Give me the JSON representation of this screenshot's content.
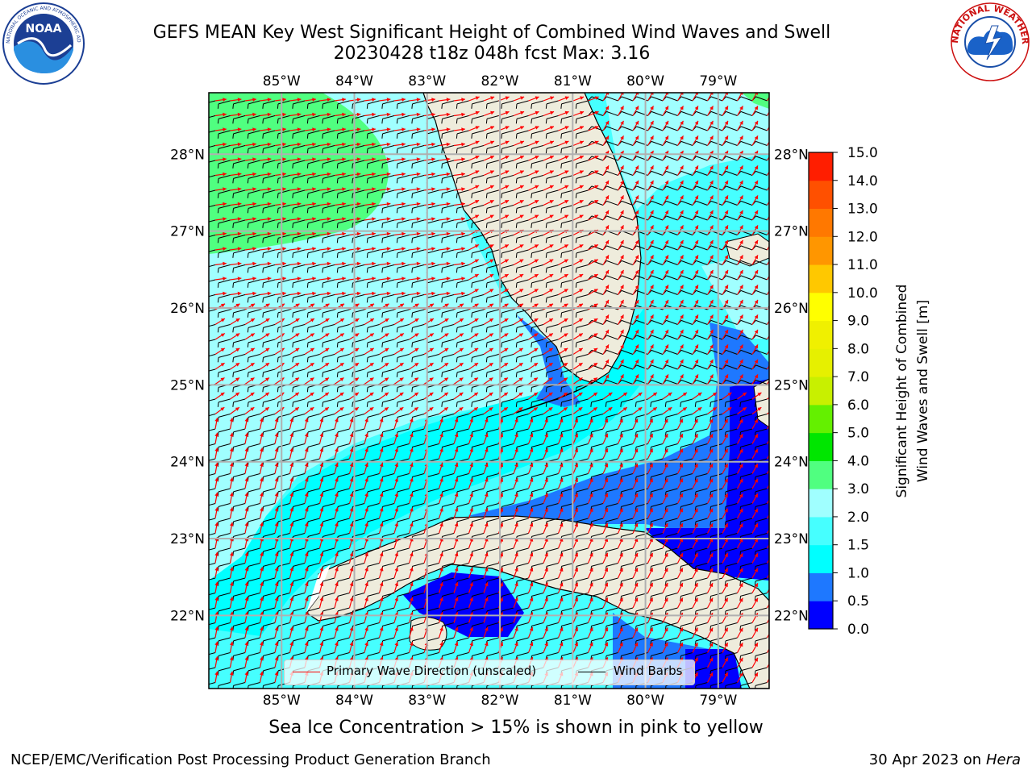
{
  "header": {
    "title_line1": "GEFS MEAN Key West Significant Height of Combined Wind Waves and Swell",
    "title_line2": "20230428 t18z 048h fcst   Max: 3.16"
  },
  "logos": {
    "noaa_text": "NOAA",
    "noaa_ring_text": "NATIONAL OCEANIC AND ATMOSPHERIC ADMINISTRATION · U.S. DEPARTMENT OF COMMERCE",
    "nws_ring_text": "NATIONAL WEATHER SERVICE"
  },
  "map": {
    "lon_ticks": [
      "85°W",
      "84°W",
      "83°W",
      "82°W",
      "81°W",
      "80°W",
      "79°W"
    ],
    "lat_ticks": [
      "28°N",
      "27°N",
      "26°N",
      "25°N",
      "24°N",
      "23°N",
      "22°N"
    ],
    "lon_values": [
      -85,
      -84,
      -83,
      -82,
      -81,
      -80,
      -79
    ],
    "lat_values": [
      28,
      27,
      26,
      25,
      24,
      23,
      22
    ],
    "extent": {
      "lon_min": -86.0,
      "lon_max": -78.3,
      "lat_min": 21.05,
      "lat_max": 28.8
    },
    "colors": {
      "land": "#eeecdc",
      "grid": "#b0b0b0",
      "barb": "#000000",
      "arrow": "#ff0000"
    }
  },
  "colorbar": {
    "label": "Significant Height of Combined Wind Waves and Swell [m]",
    "label_line1": "Significant Height of Combined",
    "label_line2": "Wind Waves and Swell [m]",
    "levels": [
      "0.0",
      "0.5",
      "1.0",
      "1.5",
      "2.0",
      "3.0",
      "4.0",
      "5.0",
      "6.0",
      "7.0",
      "8.0",
      "9.0",
      "10.0",
      "11.0",
      "12.0",
      "13.0",
      "14.0",
      "15.0"
    ],
    "colors": [
      "#0000ff",
      "#1e78ff",
      "#00ffff",
      "#46ffff",
      "#a0ffff",
      "#50ff80",
      "#00e600",
      "#64f000",
      "#c8f000",
      "#e6f000",
      "#f0f000",
      "#ffff00",
      "#ffc800",
      "#ff9600",
      "#ff7800",
      "#ff5000",
      "#ff1e00"
    ]
  },
  "legend": {
    "wave_label": "Primary Wave Direction (unscaled)",
    "barb_label": "Wind Barbs"
  },
  "note": "Sea Ice Concentration > 15% is shown in pink to yellow",
  "footer": {
    "left": "NCEP/EMC/Verification Post Processing Product Generation Branch",
    "right_date": "30 Apr 2023 on",
    "right_host": "Hera"
  }
}
